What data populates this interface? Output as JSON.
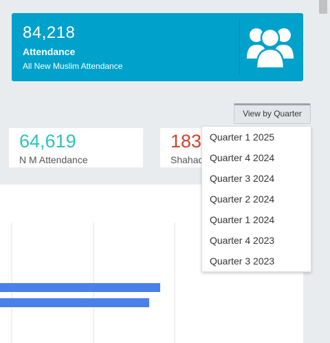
{
  "hero": {
    "count": "84,218",
    "title": "Attendance",
    "subtitle": "All New Muslim Attendance",
    "icon": "users-icon"
  },
  "view_button": {
    "label": "View by Quarter"
  },
  "stats": [
    {
      "value": "64,619",
      "label": "N M Attendance",
      "color": "#2ec4b6"
    },
    {
      "value": "183",
      "label": "Shahada",
      "color": "#d0432b"
    }
  ],
  "dropdown": {
    "options": [
      "Quarter 1 2025",
      "Quarter 4 2024",
      "Quarter 3 2024",
      "Quarter 2 2024",
      "Quarter 1 2024",
      "Quarter 4 2023",
      "Quarter 3 2023"
    ]
  },
  "chart_data": {
    "type": "bar",
    "orientation": "horizontal",
    "bar_color": "#4a80ea",
    "grid": true
  },
  "colors": {
    "accent": "#00a1cb"
  }
}
